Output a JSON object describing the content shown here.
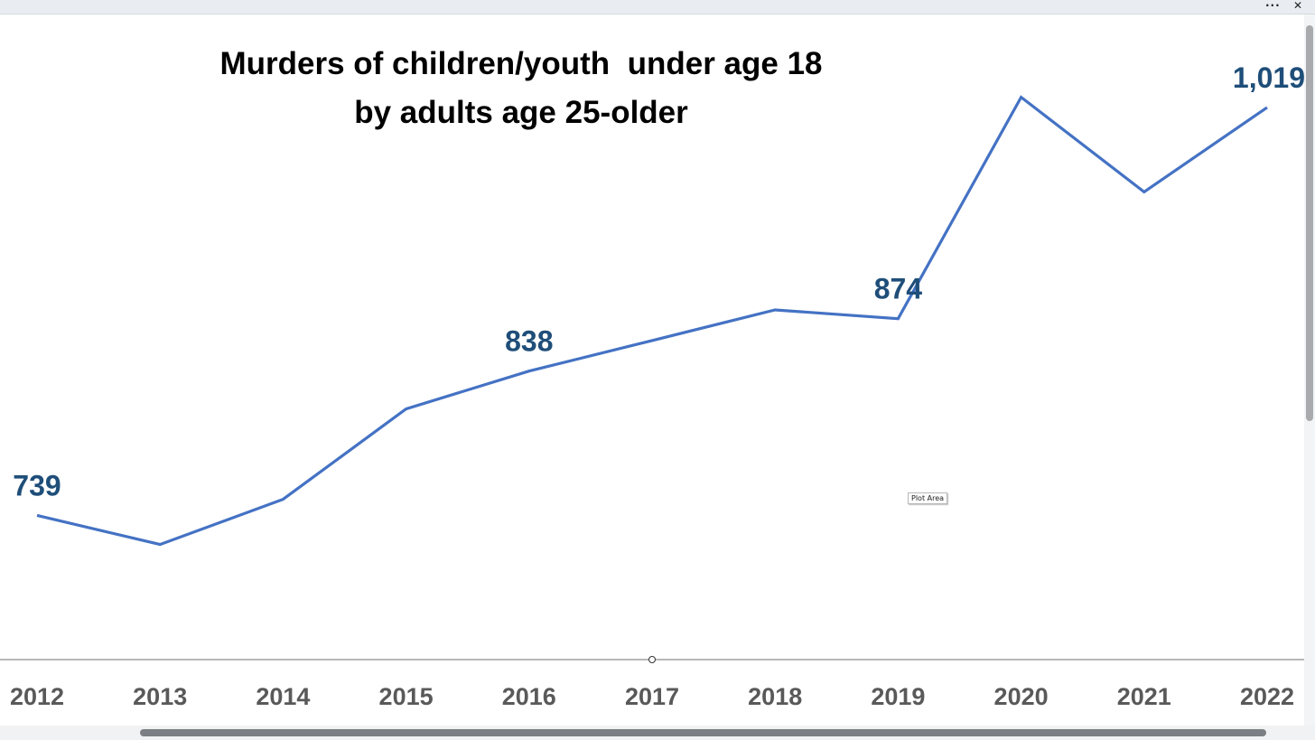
{
  "window": {
    "more_label": "···",
    "close_label": "✕"
  },
  "tooltip": {
    "text": "Plot Area"
  },
  "colors": {
    "line": "#4472c4",
    "data_label": "#1f4e79",
    "axis_label": "#595959",
    "title": "#000000",
    "axis_line": "#8c8c8c"
  },
  "chart_data": {
    "type": "line",
    "title_lines": [
      "Murders of children/youth  under age 18",
      "by adults age 25-older"
    ],
    "categories": [
      "2012",
      "2013",
      "2014",
      "2015",
      "2016",
      "2017",
      "2018",
      "2019",
      "2020",
      "2021",
      "2022"
    ],
    "series": [
      {
        "values": [
          739,
          719,
          750,
          812,
          838,
          859,
          880,
          874,
          1026,
          961,
          1019
        ]
      }
    ],
    "data_labels": [
      {
        "index": 0,
        "text": "739"
      },
      {
        "index": 4,
        "text": "838"
      },
      {
        "index": 7,
        "text": "874"
      },
      {
        "index": 10,
        "text": "1,019"
      }
    ],
    "ylim": [
      640,
      1040
    ],
    "grid": false,
    "legend": "none",
    "xlabel": "",
    "ylabel": ""
  }
}
